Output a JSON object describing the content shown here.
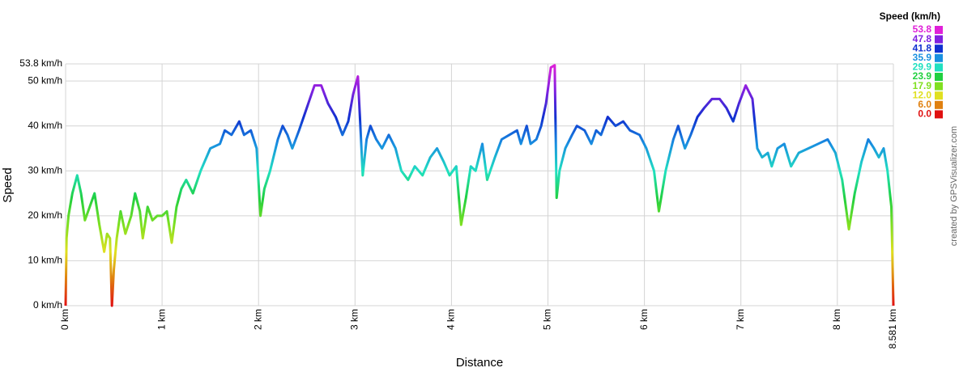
{
  "chart_data": {
    "type": "line",
    "x_label": "Distance",
    "y_label": "Speed",
    "credit": "created by GPSVisualizer.com",
    "color_scale": {
      "title": "Speed (km/h)",
      "items": [
        {
          "value": 53.8,
          "label": "53.8",
          "color": "#e020d8"
        },
        {
          "value": 47.8,
          "label": "47.8",
          "color": "#8020e0"
        },
        {
          "value": 41.8,
          "label": "41.8",
          "color": "#1030d0"
        },
        {
          "value": 35.9,
          "label": "35.9",
          "color": "#1890e0"
        },
        {
          "value": 29.9,
          "label": "29.9",
          "color": "#20e0c0"
        },
        {
          "value": 23.9,
          "label": "23.9",
          "color": "#20d040"
        },
        {
          "value": 17.9,
          "label": "17.9",
          "color": "#80e020"
        },
        {
          "value": 12,
          "label": "12.0",
          "color": "#e0e020"
        },
        {
          "value": 6,
          "label": "6.0",
          "color": "#e08010"
        },
        {
          "value": 0,
          "label": "0.0",
          "color": "#e01010"
        }
      ]
    },
    "xlim": [
      0,
      8.581
    ],
    "ylim": [
      0,
      53.8
    ],
    "xticks": [
      {
        "value": 0,
        "label": "0 km"
      },
      {
        "value": 1,
        "label": "1 km"
      },
      {
        "value": 2,
        "label": "2 km"
      },
      {
        "value": 3,
        "label": "3 km"
      },
      {
        "value": 4,
        "label": "4 km"
      },
      {
        "value": 5,
        "label": "5 km"
      },
      {
        "value": 6,
        "label": "6 km"
      },
      {
        "value": 7,
        "label": "7 km"
      },
      {
        "value": 8,
        "label": "8 km"
      },
      {
        "value": 8.581,
        "label": "8.581 km"
      }
    ],
    "yticks": [
      {
        "value": 0,
        "label": "0 km/h"
      },
      {
        "value": 10,
        "label": "10 km/h"
      },
      {
        "value": 20,
        "label": "20 km/h"
      },
      {
        "value": 30,
        "label": "30 km/h"
      },
      {
        "value": 40,
        "label": "40 km/h"
      },
      {
        "value": 50,
        "label": "50 km/h"
      },
      {
        "value": 53.8,
        "label": "53.8 km/h"
      }
    ],
    "grid": true,
    "x": [
      0,
      0.01,
      0.03,
      0.07,
      0.12,
      0.16,
      0.2,
      0.25,
      0.3,
      0.35,
      0.4,
      0.43,
      0.46,
      0.48,
      0.5,
      0.53,
      0.57,
      0.62,
      0.68,
      0.72,
      0.77,
      0.8,
      0.85,
      0.9,
      0.95,
      1.0,
      1.05,
      1.1,
      1.15,
      1.2,
      1.25,
      1.32,
      1.4,
      1.5,
      1.6,
      1.65,
      1.72,
      1.8,
      1.85,
      1.92,
      1.98,
      2.02,
      2.06,
      2.12,
      2.2,
      2.25,
      2.3,
      2.35,
      2.42,
      2.5,
      2.58,
      2.65,
      2.72,
      2.8,
      2.87,
      2.93,
      2.98,
      3.03,
      3.06,
      3.08,
      3.12,
      3.16,
      3.22,
      3.28,
      3.35,
      3.42,
      3.48,
      3.55,
      3.62,
      3.7,
      3.78,
      3.85,
      3.92,
      3.98,
      4.05,
      4.1,
      4.15,
      4.2,
      4.25,
      4.32,
      4.37,
      4.45,
      4.52,
      4.6,
      4.68,
      4.72,
      4.78,
      4.82,
      4.88,
      4.93,
      4.98,
      5.03,
      5.07,
      5.09,
      5.12,
      5.18,
      5.25,
      5.3,
      5.38,
      5.45,
      5.5,
      5.55,
      5.62,
      5.7,
      5.78,
      5.85,
      5.95,
      6.02,
      6.1,
      6.15,
      6.22,
      6.3,
      6.35,
      6.42,
      6.48,
      6.55,
      6.62,
      6.7,
      6.78,
      6.85,
      6.92,
      6.98,
      7.05,
      7.12,
      7.17,
      7.22,
      7.28,
      7.32,
      7.38,
      7.45,
      7.52,
      7.6,
      7.7,
      7.8,
      7.9,
      7.98,
      8.05,
      8.12,
      8.18,
      8.25,
      8.32,
      8.38,
      8.43,
      8.48,
      8.52,
      8.56,
      8.581
    ],
    "values": [
      0,
      15,
      20,
      25,
      29,
      25,
      19,
      22,
      25,
      18,
      12,
      16,
      15,
      0,
      8,
      15,
      21,
      16,
      20,
      25,
      21,
      15,
      22,
      19,
      20,
      20,
      21,
      14,
      22,
      26,
      28,
      25,
      30,
      35,
      36,
      39,
      38,
      41,
      38,
      39,
      35,
      20,
      26,
      30,
      37,
      40,
      38,
      35,
      39,
      44,
      49,
      49,
      45,
      42,
      38,
      41,
      47,
      51,
      38,
      29,
      37,
      40,
      37,
      35,
      38,
      35,
      30,
      28,
      31,
      29,
      33,
      35,
      32,
      29,
      31,
      18,
      24,
      31,
      30,
      36,
      28,
      33,
      37,
      38,
      39,
      36,
      40,
      36,
      37,
      40,
      45,
      53,
      53.5,
      24,
      30,
      35,
      38,
      40,
      39,
      36,
      39,
      38,
      42,
      40,
      41,
      39,
      38,
      35,
      30,
      21,
      30,
      37,
      40,
      35,
      38,
      42,
      44,
      46,
      46,
      44,
      41,
      45,
      49,
      46,
      35,
      33,
      34,
      31,
      35,
      36,
      31,
      34,
      35,
      36,
      37,
      34,
      28,
      17,
      25,
      32,
      37,
      35,
      33,
      35,
      30,
      22,
      0
    ]
  }
}
